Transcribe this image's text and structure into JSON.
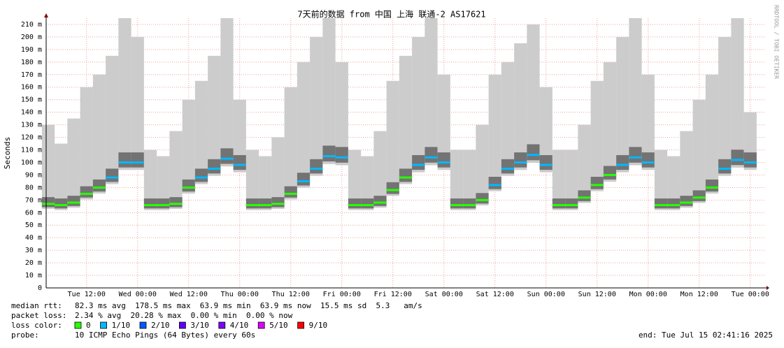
{
  "chart_data": {
    "type": "smokeping",
    "title": "7天前的数据 from 中国 上海 联通-2 AS17621",
    "y_label": "Seconds",
    "credit": "RRDTOOL / TOBI OETIKER",
    "x": [
      "Tue 03:00",
      "Tue 06:00",
      "Tue 09:00",
      "Tue 12:00",
      "Tue 15:00",
      "Tue 18:00",
      "Tue 21:00",
      "Wed 00:00",
      "Wed 03:00",
      "Wed 06:00",
      "Wed 09:00",
      "Wed 12:00",
      "Wed 15:00",
      "Wed 18:00",
      "Wed 21:00",
      "Thu 00:00",
      "Thu 03:00",
      "Thu 06:00",
      "Thu 09:00",
      "Thu 12:00",
      "Thu 15:00",
      "Thu 18:00",
      "Thu 21:00",
      "Fri 00:00",
      "Fri 03:00",
      "Fri 06:00",
      "Fri 09:00",
      "Fri 12:00",
      "Fri 15:00",
      "Fri 18:00",
      "Fri 21:00",
      "Sat 00:00",
      "Sat 03:00",
      "Sat 06:00",
      "Sat 09:00",
      "Sat 12:00",
      "Sat 15:00",
      "Sat 18:00",
      "Sat 21:00",
      "Sun 00:00",
      "Sun 03:00",
      "Sun 06:00",
      "Sun 09:00",
      "Sun 12:00",
      "Sun 15:00",
      "Sun 18:00",
      "Sun 21:00",
      "Mon 00:00",
      "Mon 03:00",
      "Mon 06:00",
      "Mon 09:00",
      "Mon 12:00",
      "Mon 15:00",
      "Mon 18:00",
      "Mon 21:00",
      "Tue 00:00"
    ],
    "median": [
      0.067,
      0.066,
      0.068,
      0.075,
      0.08,
      0.088,
      0.1,
      0.1,
      0.066,
      0.066,
      0.067,
      0.08,
      0.088,
      0.095,
      0.103,
      0.098,
      0.066,
      0.066,
      0.067,
      0.075,
      0.085,
      0.095,
      0.105,
      0.104,
      0.066,
      0.066,
      0.068,
      0.078,
      0.088,
      0.098,
      0.104,
      0.1,
      0.066,
      0.066,
      0.07,
      0.082,
      0.095,
      0.1,
      0.106,
      0.098,
      0.066,
      0.066,
      0.072,
      0.082,
      0.09,
      0.098,
      0.104,
      0.1,
      0.066,
      0.066,
      0.068,
      0.072,
      0.08,
      0.095,
      0.102,
      0.1
    ],
    "loss": [
      0,
      0,
      0,
      0,
      0,
      0.1,
      0.1,
      0.1,
      0,
      0,
      0,
      0,
      0.1,
      0.1,
      0.1,
      0.1,
      0,
      0,
      0,
      0,
      0.1,
      0.1,
      0.1,
      0.1,
      0,
      0,
      0,
      0,
      0,
      0.1,
      0.1,
      0.1,
      0,
      0,
      0,
      0.1,
      0.1,
      0.1,
      0.1,
      0.1,
      0,
      0,
      0,
      0,
      0,
      0.1,
      0.1,
      0.1,
      0,
      0,
      0,
      0,
      0,
      0.1,
      0.1,
      0.1
    ],
    "smoke_max": [
      0.13,
      0.115,
      0.135,
      0.16,
      0.17,
      0.185,
      0.215,
      0.2,
      0.11,
      0.105,
      0.125,
      0.15,
      0.165,
      0.185,
      0.215,
      0.15,
      0.11,
      0.105,
      0.12,
      0.16,
      0.18,
      0.2,
      0.215,
      0.18,
      0.11,
      0.105,
      0.125,
      0.165,
      0.185,
      0.2,
      0.215,
      0.17,
      0.11,
      0.11,
      0.13,
      0.17,
      0.18,
      0.195,
      0.21,
      0.16,
      0.11,
      0.11,
      0.13,
      0.165,
      0.18,
      0.2,
      0.215,
      0.17,
      0.11,
      0.105,
      0.125,
      0.15,
      0.17,
      0.2,
      0.215,
      0.14
    ],
    "ylim": [
      0,
      0.215
    ],
    "yticks": [
      0,
      {
        "value": 0.01,
        "label": "10 m"
      },
      {
        "value": 0.02,
        "label": "20 m"
      },
      {
        "value": 0.03,
        "label": "30 m"
      },
      {
        "value": 0.04,
        "label": "40 m"
      },
      {
        "value": 0.05,
        "label": "50 m"
      },
      {
        "value": 0.06,
        "label": "60 m"
      },
      {
        "value": 0.07,
        "label": "70 m"
      },
      {
        "value": 0.08,
        "label": "80 m"
      },
      {
        "value": 0.09,
        "label": "90 m"
      },
      {
        "value": 0.1,
        "label": "100 m"
      },
      {
        "value": 0.11,
        "label": "110 m"
      },
      {
        "value": 0.12,
        "label": "120 m"
      },
      {
        "value": 0.13,
        "label": "130 m"
      },
      {
        "value": 0.14,
        "label": "140 m"
      },
      {
        "value": 0.15,
        "label": "150 m"
      },
      {
        "value": 0.16,
        "label": "160 m"
      },
      {
        "value": 0.17,
        "label": "170 m"
      },
      {
        "value": 0.18,
        "label": "180 m"
      },
      {
        "value": 0.19,
        "label": "190 m"
      },
      {
        "value": 0.2,
        "label": "200 m"
      },
      {
        "value": 0.21,
        "label": "210 m"
      }
    ],
    "xticks": [
      "Tue 12:00",
      "Wed 00:00",
      "Wed 12:00",
      "Thu 00:00",
      "Thu 12:00",
      "Fri 00:00",
      "Fri 12:00",
      "Sat 00:00",
      "Sat 12:00",
      "Sun 00:00",
      "Sun 12:00",
      "Mon 00:00",
      "Mon 12:00",
      "Tue 00:00"
    ],
    "grid": true,
    "stats": [
      {
        "label": "median rtt:",
        "text": "82.3 ms avg  178.5 ms max  63.9 ms min  63.9 ms now  15.5 ms sd  5.3   am/s"
      },
      {
        "label": "packet loss:",
        "text": "2.34 % avg  20.28 % max  0.00 % min  0.00 % now"
      }
    ],
    "loss_legend_label": "loss color:",
    "loss_colors": [
      {
        "value": 0,
        "label": "0",
        "color": "#26ff00"
      },
      {
        "value": 0.1,
        "label": "1/10",
        "color": "#00b8ff"
      },
      {
        "value": 0.2,
        "label": "2/10",
        "color": "#0059ff"
      },
      {
        "value": 0.3,
        "label": "3/10",
        "color": "#5e00ff"
      },
      {
        "value": 0.4,
        "label": "4/10",
        "color": "#7e00ff"
      },
      {
        "value": 0.5,
        "label": "5/10",
        "color": "#dd00ff"
      },
      {
        "value": 0.9,
        "label": "9/10",
        "color": "#ff0000"
      }
    ],
    "probe_label": "probe:",
    "probe": "10 ICMP Echo Pings (64 Bytes) every 60s",
    "end": "end: Tue Jul 15 02:41:16 2025"
  }
}
